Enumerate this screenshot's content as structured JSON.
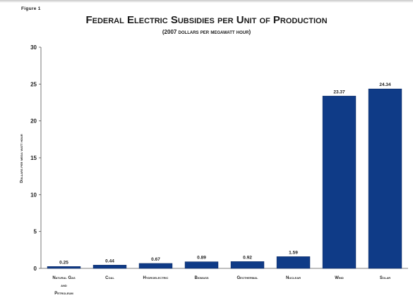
{
  "figure_label": "Figure 1",
  "chart_data": {
    "type": "bar",
    "title": "Federal Electric Subsidies per Unit of Production",
    "subtitle": "(2007 dollars per megawatt hour)",
    "xlabel": "",
    "ylabel": "Dollars per mega watt hour",
    "ylim": [
      0,
      30
    ],
    "yticks": [
      0,
      5,
      10,
      15,
      20,
      25,
      30
    ],
    "grid": false,
    "legend": "none",
    "bar_color": "#0f3b87",
    "categories": [
      [
        "Natural Gas",
        "and",
        "Petroleum"
      ],
      [
        "Coal"
      ],
      [
        "Hydroelectric"
      ],
      [
        "Biomass"
      ],
      [
        "Geothermal"
      ],
      [
        "Nuclear"
      ],
      [
        "Wind"
      ],
      [
        "Solar"
      ]
    ],
    "values": [
      0.25,
      0.44,
      0.67,
      0.89,
      0.92,
      1.59,
      23.37,
      24.34
    ],
    "value_labels": [
      "0.25",
      "0.44",
      "0.67",
      "0.89",
      "0.92",
      "1.59",
      "23.37",
      "24.34"
    ]
  }
}
